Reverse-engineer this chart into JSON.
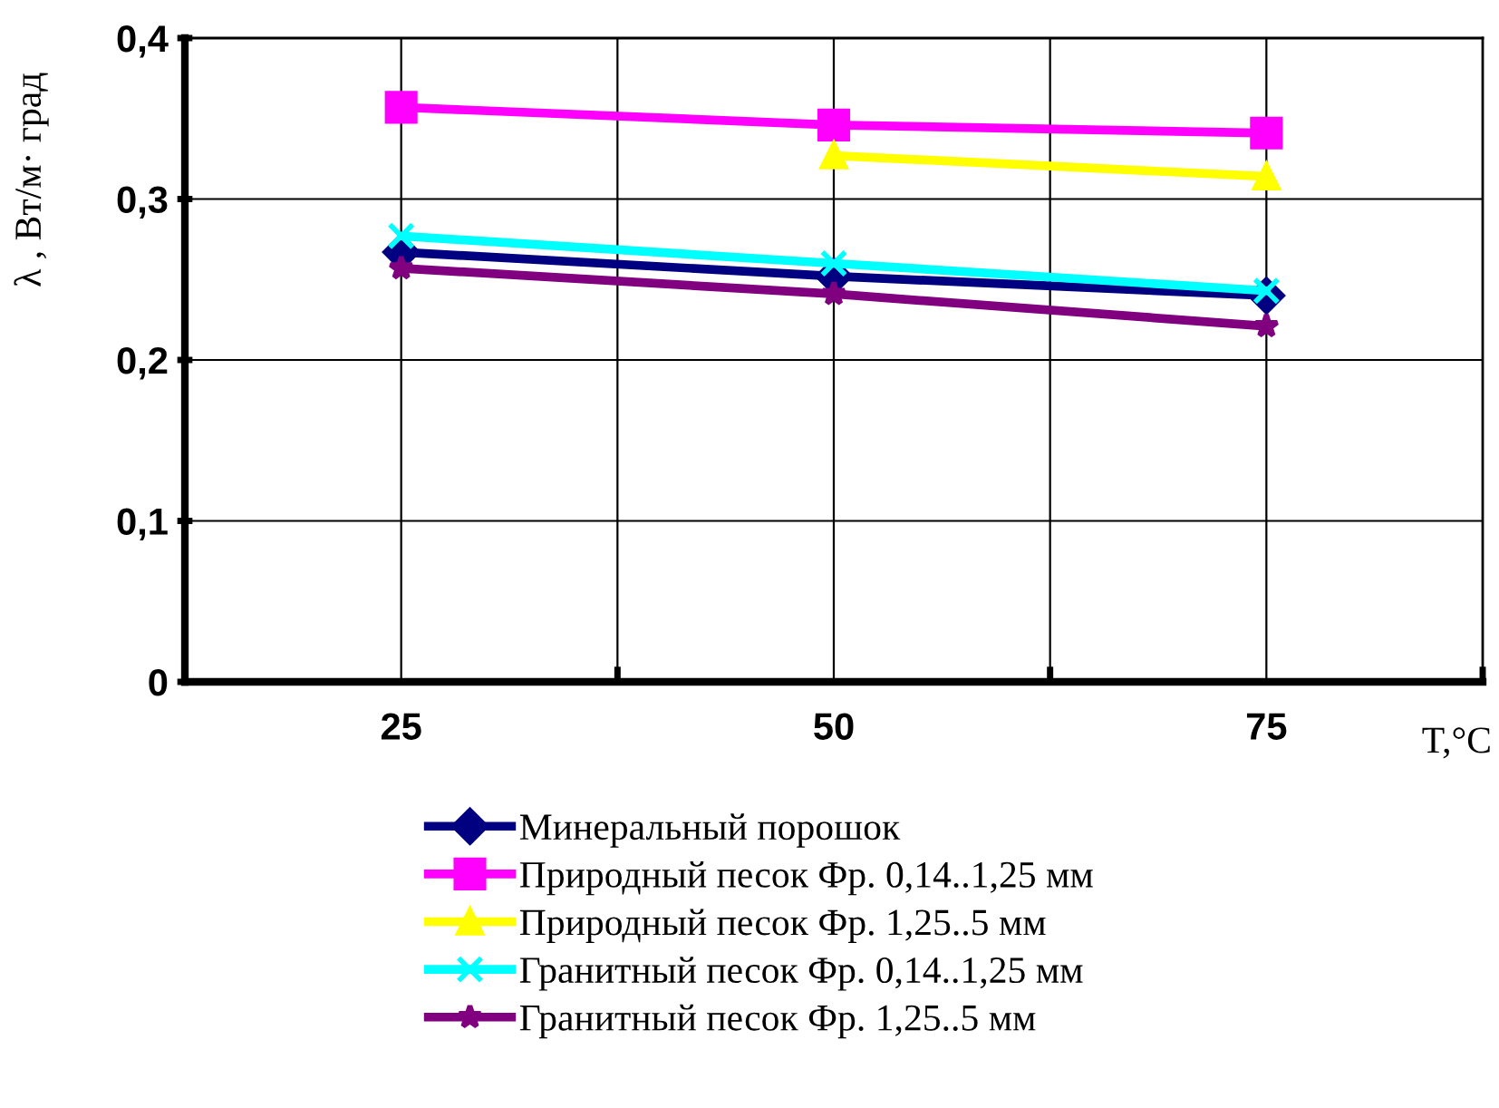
{
  "chart_data": {
    "type": "line",
    "xlabel": "T,°C",
    "ylabel": "λ , Вт/м· град",
    "categories": [
      "25",
      "50",
      "75"
    ],
    "series": [
      {
        "name": "Минеральный порошок",
        "color": "#000080",
        "marker": "diamond",
        "values": [
          0.267,
          0.252,
          0.24
        ]
      },
      {
        "name": "Природный песок Фр. 0,14..1,25 мм",
        "color": "#ff00ff",
        "marker": "square",
        "values": [
          0.357,
          0.346,
          0.341
        ]
      },
      {
        "name": "Природный песок Фр. 1,25..5 мм",
        "color": "#ffff00",
        "marker": "triangle",
        "values": [
          null,
          0.327,
          0.314
        ]
      },
      {
        "name": "Гранитный песок Фр. 0,14..1,25 мм",
        "color": "#00ffff",
        "marker": "cross",
        "values": [
          0.277,
          0.26,
          0.243
        ]
      },
      {
        "name": "Гранитный песок Фр. 1,25..5 мм",
        "color": "#800080",
        "marker": "star",
        "values": [
          0.257,
          0.241,
          0.221
        ]
      }
    ],
    "ylim": [
      0,
      0.4
    ],
    "yticks": [
      {
        "value": 0,
        "label": "0"
      },
      {
        "value": 0.1,
        "label": "0,1"
      },
      {
        "value": 0.2,
        "label": "0,2"
      },
      {
        "value": 0.3,
        "label": "0,3"
      },
      {
        "value": 0.4,
        "label": "0,4"
      }
    ],
    "grid": true,
    "legend": "bottom"
  }
}
